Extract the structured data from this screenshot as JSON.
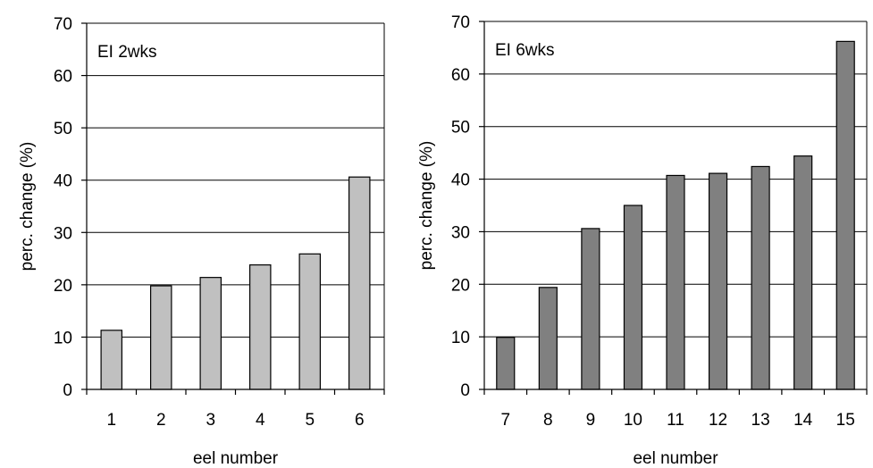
{
  "chart_data": [
    {
      "type": "bar",
      "annotation": "EI 2wks",
      "xlabel": "eel number",
      "ylabel": "perc. change (%)",
      "categories": [
        "1",
        "2",
        "3",
        "4",
        "5",
        "6"
      ],
      "values": [
        11.3,
        19.8,
        21.4,
        23.8,
        25.9,
        40.6
      ],
      "ylim": [
        0,
        70
      ],
      "yticks": [
        0,
        10,
        20,
        30,
        40,
        50,
        60,
        70
      ],
      "grid": true,
      "bar_color": "#c0c0c0"
    },
    {
      "type": "bar",
      "annotation": "EI 6wks",
      "xlabel": "eel number",
      "ylabel": "perc. change (%)",
      "categories": [
        "7",
        "8",
        "9",
        "10",
        "11",
        "12",
        "13",
        "14",
        "15"
      ],
      "values": [
        9.9,
        19.4,
        30.6,
        35.0,
        40.7,
        41.1,
        42.4,
        44.4,
        66.2
      ],
      "ylim": [
        0,
        70
      ],
      "yticks": [
        0,
        10,
        20,
        30,
        40,
        50,
        60,
        70
      ],
      "grid": true,
      "bar_color": "#808080"
    }
  ]
}
